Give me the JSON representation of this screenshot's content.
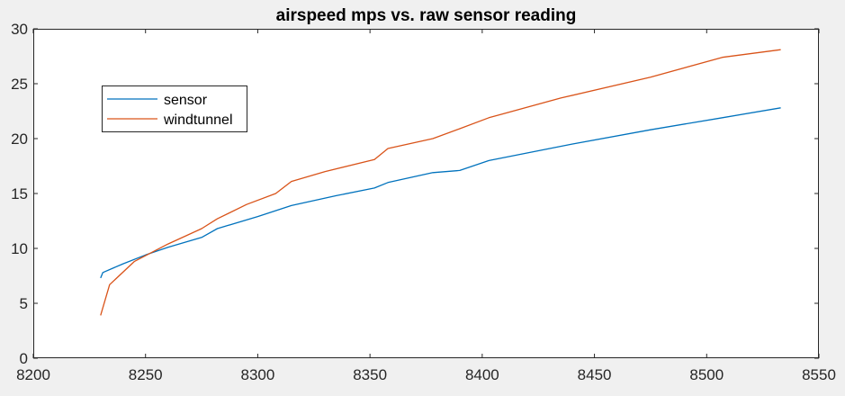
{
  "chart_data": {
    "type": "line",
    "title": "airspeed mps vs. raw sensor reading",
    "xlabel": "",
    "ylabel": "",
    "xlim": [
      8200,
      8550
    ],
    "ylim": [
      0,
      30
    ],
    "xticks": [
      8200,
      8250,
      8300,
      8350,
      8400,
      8450,
      8500,
      8550
    ],
    "yticks": [
      0,
      5,
      10,
      15,
      20,
      25,
      30
    ],
    "grid": false,
    "legend_position": "upper-left",
    "series": [
      {
        "name": "sensor",
        "color": "#0072BD",
        "x": [
          8230,
          8231,
          8240,
          8250,
          8260,
          8275,
          8282,
          8300,
          8315,
          8335,
          8352,
          8358,
          8378,
          8390,
          8403,
          8440,
          8475,
          8507,
          8533
        ],
        "y": [
          7.3,
          7.8,
          8.6,
          9.4,
          10.1,
          11.0,
          11.8,
          12.9,
          13.9,
          14.8,
          15.5,
          16.0,
          16.9,
          17.1,
          18.0,
          19.5,
          20.8,
          21.9,
          22.8
        ]
      },
      {
        "name": "windtunnel",
        "color": "#D95319",
        "x": [
          8230,
          8234,
          8245,
          8260,
          8275,
          8282,
          8295,
          8308,
          8315,
          8330,
          8352,
          8358,
          8378,
          8390,
          8403,
          8435,
          8475,
          8507,
          8533
        ],
        "y": [
          3.9,
          6.7,
          8.8,
          10.4,
          11.8,
          12.7,
          14.0,
          15.0,
          16.1,
          17.0,
          18.1,
          19.1,
          20.0,
          20.9,
          21.9,
          23.7,
          25.6,
          27.4,
          28.1
        ]
      }
    ]
  }
}
